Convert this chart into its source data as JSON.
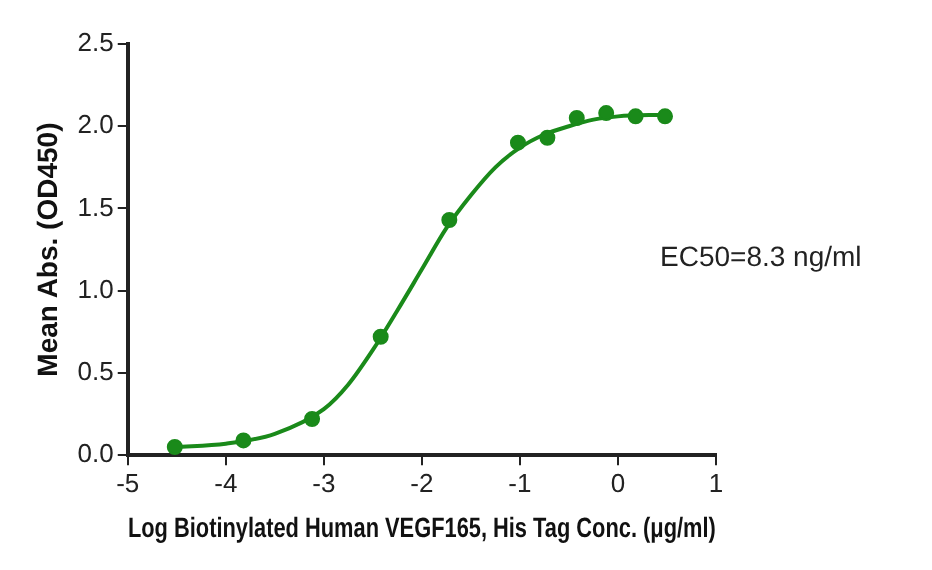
{
  "chart_data": {
    "type": "scatter",
    "xlabel": "Log Biotinylated Human VEGF165, His Tag Conc. (μg/ml)",
    "ylabel": "Mean Abs. (OD450)",
    "xlim": [
      -5,
      1
    ],
    "xticks": [
      -5,
      -4,
      -3,
      -2,
      -1,
      0,
      1
    ],
    "ylim": [
      0,
      2.5
    ],
    "yticks": [
      {
        "value": 0,
        "label": "0.0"
      },
      {
        "value": 0.5,
        "label": "0.5"
      },
      {
        "value": 1,
        "label": "1.0"
      },
      {
        "value": 1.5,
        "label": "1.5"
      },
      {
        "value": 2,
        "label": "2.0"
      },
      {
        "value": 2.5,
        "label": "2.5"
      }
    ],
    "grid": false,
    "legend": false,
    "marker": "circle",
    "annotations": [
      "EC50=8.3 ng/ml"
    ],
    "series": [
      {
        "color": "#1a8a1a",
        "x": [
          -4.52,
          -3.82,
          -3.12,
          -2.42,
          -1.72,
          -1.02,
          -0.72,
          -0.42,
          -0.12,
          0.18,
          0.48
        ],
        "values": [
          0.05,
          0.09,
          0.22,
          0.72,
          1.43,
          1.9,
          1.93,
          2.05,
          2.08,
          2.06,
          2.06
        ]
      },
      {
        "type": "line",
        "marker": "none",
        "color": "#1a8a1a",
        "x": [
          -4.52,
          -4,
          -3.5,
          -3,
          -2.75,
          -2.5,
          -2.25,
          -2,
          -1.75,
          -1.5,
          -1.25,
          -1,
          -0.75,
          -0.5,
          -0.25,
          0,
          0.48
        ],
        "values": [
          0.05,
          0.07,
          0.13,
          0.28,
          0.43,
          0.64,
          0.88,
          1.13,
          1.38,
          1.58,
          1.75,
          1.87,
          1.95,
          2.0,
          2.04,
          2.06,
          2.07
        ]
      }
    ]
  }
}
